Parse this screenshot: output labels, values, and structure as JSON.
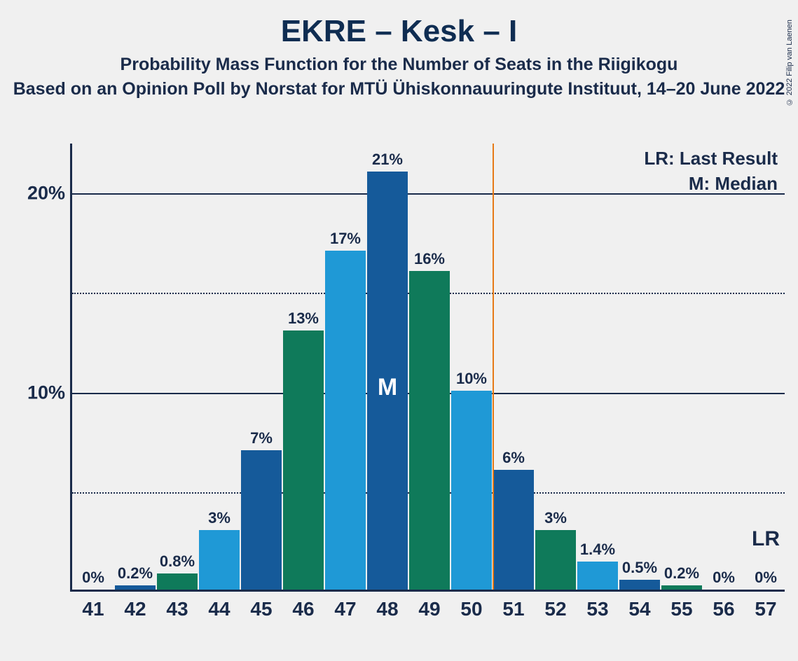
{
  "copyright": "© 2022 Filip van Laenen",
  "title": "EKRE – Kesk – I",
  "subtitle": "Probability Mass Function for the Number of Seats in the Riigikogu",
  "subtitle2": "Based on an Opinion Poll by Norstat for MTÜ Ühiskonnauuringute Instituut, 14–20 June 2022",
  "legend_lr": "LR: Last Result",
  "legend_m": "M: Median",
  "lr_marker": "LR",
  "median_letter": "M",
  "chart": {
    "type": "bar",
    "background_color": "#f0f0f0",
    "axis_color": "#1a2b4a",
    "vline_color": "#e67a17",
    "colors": {
      "dark_blue": "#155a9a",
      "light_blue": "#1f99d6",
      "green": "#0f7a5a"
    },
    "ylim": [
      0,
      22.5
    ],
    "y_ticks_solid": [
      10,
      20
    ],
    "y_ticks_dotted": [
      5,
      15
    ],
    "y_tick_labels": {
      "10": "10%",
      "20": "20%"
    },
    "median_seat": 48,
    "last_result_seat": 57,
    "majority_threshold": 50.5,
    "bars": [
      {
        "seat": 41,
        "value": 0,
        "label": "0%",
        "color": "light_blue"
      },
      {
        "seat": 42,
        "value": 0.2,
        "label": "0.2%",
        "color": "dark_blue"
      },
      {
        "seat": 43,
        "value": 0.8,
        "label": "0.8%",
        "color": "green"
      },
      {
        "seat": 44,
        "value": 3,
        "label": "3%",
        "color": "light_blue"
      },
      {
        "seat": 45,
        "value": 7,
        "label": "7%",
        "color": "dark_blue"
      },
      {
        "seat": 46,
        "value": 13,
        "label": "13%",
        "color": "green"
      },
      {
        "seat": 47,
        "value": 17,
        "label": "17%",
        "color": "light_blue"
      },
      {
        "seat": 48,
        "value": 21,
        "label": "21%",
        "color": "dark_blue"
      },
      {
        "seat": 49,
        "value": 16,
        "label": "16%",
        "color": "green"
      },
      {
        "seat": 50,
        "value": 10,
        "label": "10%",
        "color": "light_blue"
      },
      {
        "seat": 51,
        "value": 6,
        "label": "6%",
        "color": "dark_blue"
      },
      {
        "seat": 52,
        "value": 3,
        "label": "3%",
        "color": "green"
      },
      {
        "seat": 53,
        "value": 1.4,
        "label": "1.4%",
        "color": "light_blue"
      },
      {
        "seat": 54,
        "value": 0.5,
        "label": "0.5%",
        "color": "dark_blue"
      },
      {
        "seat": 55,
        "value": 0.2,
        "label": "0.2%",
        "color": "green"
      },
      {
        "seat": 56,
        "value": 0,
        "label": "0%",
        "color": "light_blue"
      },
      {
        "seat": 57,
        "value": 0,
        "label": "0%",
        "color": "dark_blue"
      }
    ],
    "bar_width_ratio": 0.96,
    "title_fontsize": 44,
    "subtitle_fontsize": 25,
    "label_fontsize": 22,
    "axis_label_fontsize": 28
  }
}
